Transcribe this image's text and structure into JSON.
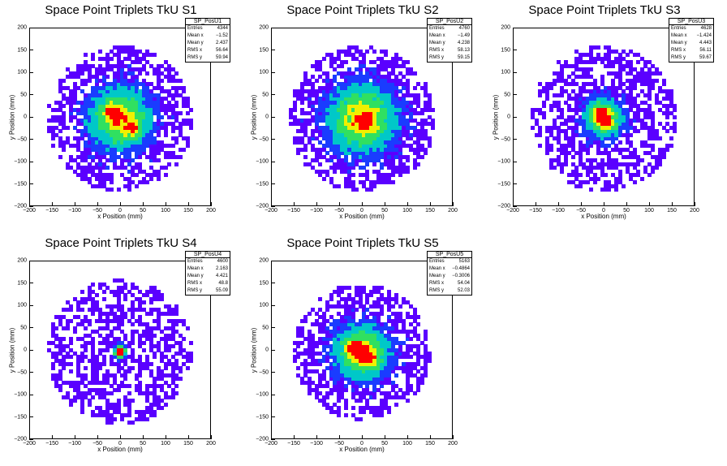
{
  "chart_data": [
    {
      "type": "heatmap",
      "title": "Space Point Triplets TkU S1",
      "xlabel": "x Position (mm)",
      "ylabel": "y Position (mm)",
      "xlim": [
        -200,
        200
      ],
      "ylim": [
        -200,
        200
      ],
      "xticks": [
        "−200",
        "−150",
        "−100",
        "−50",
        "0",
        "50",
        "100",
        "150",
        "200"
      ],
      "yticks": [
        "200",
        "150",
        "100",
        "50",
        "0",
        "−50",
        "−100",
        "−150",
        "−200"
      ],
      "stats": {
        "name": "SP_PosU1",
        "rows": [
          {
            "label": "Entries",
            "value": "4344"
          },
          {
            "label": "Mean x",
            "value": "−1.52"
          },
          {
            "label": "Mean y",
            "value": "2.437"
          },
          {
            "label": "RMS x",
            "value": "56.64"
          },
          {
            "label": "RMS y",
            "value": "59.94"
          }
        ]
      },
      "distribution": {
        "radius_mm": 160,
        "core_sigma_mm": 45,
        "hotspots": [
          [
            -20,
            20
          ],
          [
            30,
            -25
          ]
        ]
      }
    },
    {
      "type": "heatmap",
      "title": "Space Point Triplets TkU S2",
      "xlabel": "x Position (mm)",
      "ylabel": "y Position (mm)",
      "xlim": [
        -200,
        200
      ],
      "ylim": [
        -200,
        200
      ],
      "xticks": [
        "−200",
        "−150",
        "−100",
        "−50",
        "0",
        "50",
        "100",
        "150",
        "200"
      ],
      "yticks": [
        "200",
        "150",
        "100",
        "50",
        "0",
        "−50",
        "−100",
        "−150",
        "−200"
      ],
      "stats": {
        "name": "SP_PosU2",
        "rows": [
          {
            "label": "Entries",
            "value": "4760"
          },
          {
            "label": "Mean x",
            "value": "−1.49"
          },
          {
            "label": "Mean y",
            "value": "4.238"
          },
          {
            "label": "RMS x",
            "value": "58.13"
          },
          {
            "label": "RMS y",
            "value": "59.15"
          }
        ]
      },
      "distribution": {
        "radius_mm": 160,
        "core_sigma_mm": 50,
        "hotspots": [
          [
            10,
            -10
          ]
        ]
      }
    },
    {
      "type": "heatmap",
      "title": "Space Point Triplets TkU S3",
      "xlabel": "x Position (mm)",
      "ylabel": "y Position (mm)",
      "xlim": [
        -200,
        200
      ],
      "ylim": [
        -200,
        200
      ],
      "xticks": [
        "−200",
        "−150",
        "−100",
        "−50",
        "0",
        "50",
        "100",
        "150",
        "200"
      ],
      "yticks": [
        "200",
        "150",
        "100",
        "50",
        "0",
        "−50",
        "−100",
        "−150",
        "−200"
      ],
      "stats": {
        "name": "SP_PosU3",
        "rows": [
          {
            "label": "Entries",
            "value": "4628"
          },
          {
            "label": "Mean x",
            "value": "−1.424"
          },
          {
            "label": "Mean y",
            "value": "4.443"
          },
          {
            "label": "RMS x",
            "value": "56.11"
          },
          {
            "label": "RMS y",
            "value": "59.67"
          }
        ]
      },
      "distribution": {
        "radius_mm": 160,
        "core_sigma_mm": 28,
        "hotspots": [
          [
            -10,
            20
          ],
          [
            0,
            0
          ]
        ]
      }
    },
    {
      "type": "heatmap",
      "title": "Space Point Triplets TkU S4",
      "xlabel": "x Position (mm)",
      "ylabel": "y Position (mm)",
      "xlim": [
        -200,
        200
      ],
      "ylim": [
        -200,
        200
      ],
      "xticks": [
        "−200",
        "−150",
        "−100",
        "−50",
        "0",
        "50",
        "100",
        "150",
        "200"
      ],
      "yticks": [
        "200",
        "150",
        "100",
        "50",
        "0",
        "−50",
        "−100",
        "−150",
        "−200"
      ],
      "stats": {
        "name": "SP_PosU4",
        "rows": [
          {
            "label": "Entries",
            "value": "4600"
          },
          {
            "label": "Mean x",
            "value": "2.163"
          },
          {
            "label": "Mean y",
            "value": "4.421"
          },
          {
            "label": "RMS x",
            "value": "48.8"
          },
          {
            "label": "RMS y",
            "value": "55.09"
          }
        ]
      },
      "distribution": {
        "radius_mm": 160,
        "core_sigma_mm": 9,
        "hotspots": [
          [
            0,
            0
          ]
        ]
      }
    },
    {
      "type": "heatmap",
      "title": "Space Point Triplets TkU S5",
      "xlabel": "x Position (mm)",
      "ylabel": "y Position (mm)",
      "xlim": [
        -200,
        200
      ],
      "ylim": [
        -200,
        200
      ],
      "xticks": [
        "−200",
        "−150",
        "−100",
        "−50",
        "0",
        "50",
        "100",
        "150",
        "200"
      ],
      "yticks": [
        "200",
        "150",
        "100",
        "50",
        "0",
        "−50",
        "−100",
        "−150",
        "−200"
      ],
      "stats": {
        "name": "SP_PosU5",
        "rows": [
          {
            "label": "Entries",
            "value": "5163"
          },
          {
            "label": "Mean x",
            "value": "−0.4864"
          },
          {
            "label": "Mean y",
            "value": "−0.3006"
          },
          {
            "label": "RMS x",
            "value": "54.04"
          },
          {
            "label": "RMS y",
            "value": "52.03"
          }
        ]
      },
      "distribution": {
        "radius_mm": 150,
        "core_sigma_mm": 40,
        "hotspots": [
          [
            0,
            0
          ],
          [
            -20,
            10
          ],
          [
            20,
            -20
          ]
        ]
      }
    }
  ],
  "colors": {
    "low": "#5a00ff",
    "midlow": "#1a3cff",
    "mid": "#00c8c8",
    "midhigh": "#30e060",
    "high": "#f0f000",
    "peak": "#ff0000",
    "frame": "#000000"
  }
}
